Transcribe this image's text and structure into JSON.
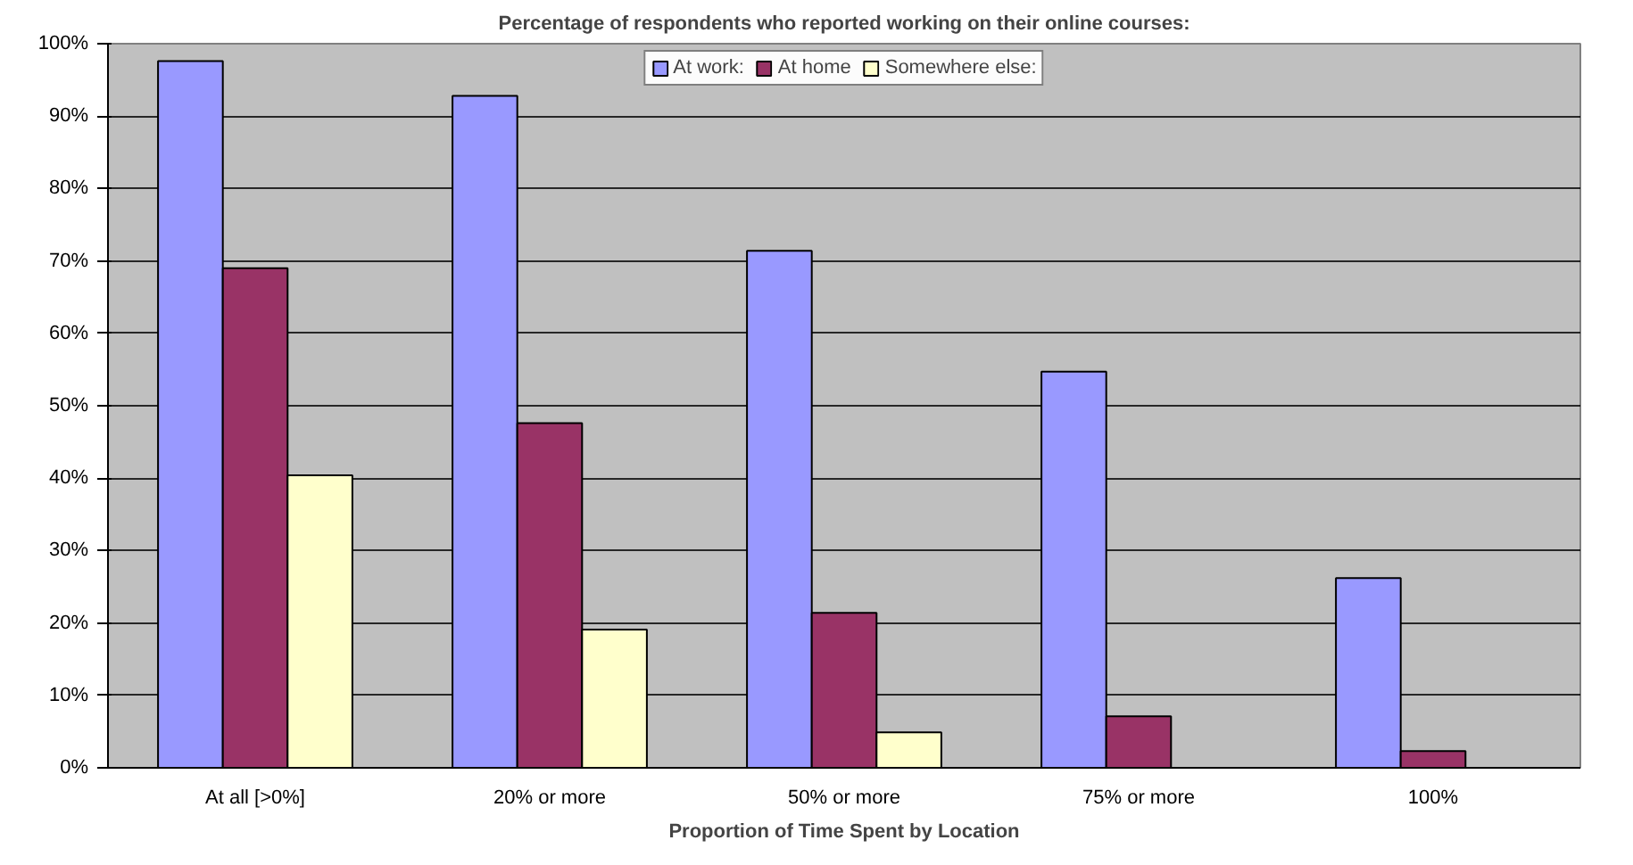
{
  "chart_data": {
    "type": "bar",
    "title": "Percentage of respondents who reported working on their online courses:",
    "xlabel": "Proportion of Time Spent by Location",
    "categories": [
      "At all [>0%]",
      "20% or more",
      "50% or more",
      "75% or more",
      "100%"
    ],
    "series": [
      {
        "name": "At work:",
        "color": "#9999ff",
        "values": [
          97.6,
          92.8,
          71.4,
          54.7,
          26.2
        ]
      },
      {
        "name": "At home",
        "color": "#993366",
        "values": [
          69.0,
          47.6,
          21.4,
          7.1,
          2.3
        ]
      },
      {
        "name": "Somewhere else:",
        "color": "#ffffcc",
        "values": [
          40.4,
          19.1,
          4.9,
          null,
          null
        ]
      }
    ],
    "ylim": [
      0,
      100
    ],
    "yticks": [
      {
        "value": 0,
        "label": "0%"
      },
      {
        "value": 10,
        "label": "10%"
      },
      {
        "value": 20,
        "label": "20%"
      },
      {
        "value": 30,
        "label": "30%"
      },
      {
        "value": 40,
        "label": "40%"
      },
      {
        "value": 50,
        "label": "50%"
      },
      {
        "value": 60,
        "label": "60%"
      },
      {
        "value": 70,
        "label": "70%"
      },
      {
        "value": 80,
        "label": "80%"
      },
      {
        "value": 90,
        "label": "90%"
      },
      {
        "value": 100,
        "label": "100%"
      }
    ],
    "grid": "y",
    "legend": "top"
  }
}
